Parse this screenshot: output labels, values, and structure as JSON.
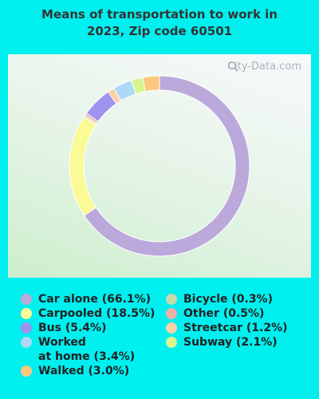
{
  "title_line1": "Means of transportation to work in",
  "title_line2": "2023, Zip code 60501",
  "watermark": "City-Data.com",
  "chart_data": {
    "type": "pie",
    "donut": true,
    "title": "Means of transportation to work in 2023, Zip code 60501",
    "slices": [
      {
        "name": "Car alone",
        "value": 66.1,
        "label": "Car alone (66.1%)",
        "color": "#bca9db"
      },
      {
        "name": "Carpooled",
        "value": 18.5,
        "label": "Carpooled (18.5%)",
        "color": "#fafa96"
      },
      {
        "name": "Bicycle",
        "value": 0.3,
        "label": "Bicycle (0.3%)",
        "color": "#c8d8a8"
      },
      {
        "name": "Other",
        "value": 0.5,
        "label": "Other (0.5%)",
        "color": "#eeb0a8"
      },
      {
        "name": "Bus",
        "value": 5.4,
        "label": "Bus (5.4%)",
        "color": "#9e93ee"
      },
      {
        "name": "Streetcar",
        "value": 1.2,
        "label": "Streetcar (1.2%)",
        "color": "#fbcfa8"
      },
      {
        "name": "Worked at home",
        "value": 3.4,
        "label": "Worked\nat home (3.4%)",
        "color": "#add8f8"
      },
      {
        "name": "Subway",
        "value": 2.1,
        "label": "Subway (2.1%)",
        "color": "#d6f58e"
      },
      {
        "name": "Walked",
        "value": 3.0,
        "label": "Walked (3.0%)",
        "color": "#fcc87c"
      }
    ],
    "legend_left": [
      0,
      1,
      4,
      6,
      8
    ],
    "legend_right": [
      2,
      3,
      5,
      7
    ]
  }
}
